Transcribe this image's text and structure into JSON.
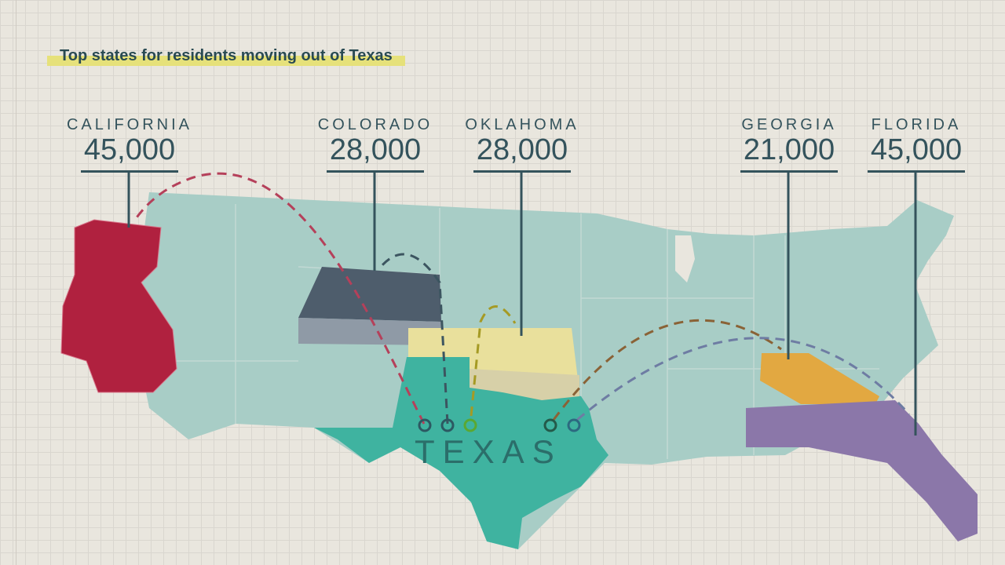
{
  "title": "Top states for residents moving out of Texas",
  "origin": {
    "label": "TEXAS",
    "color": "#3fb3a0"
  },
  "states": [
    {
      "name": "CALIFORNIA",
      "value": "45,000",
      "color": "#b0213f"
    },
    {
      "name": "COLORADO",
      "value": "28,000",
      "color": "#4e5d6c"
    },
    {
      "name": "OKLAHOMA",
      "value": "28,000",
      "color": "#e9e09c"
    },
    {
      "name": "GEORGIA",
      "value": "21,000",
      "color": "#e2a841"
    },
    {
      "name": "FLORIDA",
      "value": "45,000",
      "color": "#8b77a9"
    }
  ],
  "colors": {
    "background": "#e9e6de",
    "us_land": "#a8cdc6",
    "text": "#34535c",
    "highlight": "#e6e17a"
  }
}
